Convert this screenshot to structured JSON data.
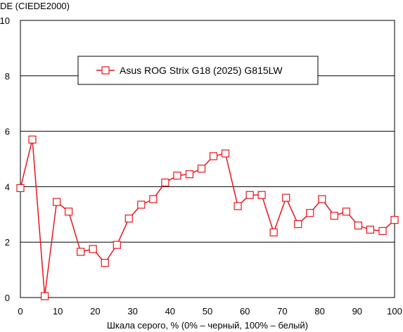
{
  "chart_data": {
    "type": "line",
    "ylabel": "DE (CIEDE2000)",
    "xlabel": "Шкала серого, % (0% – черный, 100% – белый)",
    "xlim": [
      0,
      100
    ],
    "ylim": [
      0,
      10
    ],
    "x_ticks": [
      0,
      10,
      20,
      30,
      40,
      50,
      60,
      70,
      80,
      90,
      100
    ],
    "y_ticks": [
      0,
      2,
      4,
      6,
      8,
      10
    ],
    "grid": "horizontal",
    "legend_position": "top-center",
    "series": [
      {
        "name": "Asus ROG Strix G18 (2025) G815LW",
        "color": "#e8151b",
        "marker": "square",
        "x": [
          0,
          3.2,
          6.5,
          9.7,
          12.9,
          16.1,
          19.4,
          22.6,
          25.8,
          29.0,
          32.3,
          35.5,
          38.7,
          41.9,
          45.2,
          48.4,
          51.6,
          54.8,
          58.1,
          61.3,
          64.5,
          67.7,
          71.0,
          74.2,
          77.4,
          80.6,
          83.9,
          87.1,
          90.3,
          93.5,
          96.8,
          100
        ],
        "values": [
          3.95,
          5.7,
          0.05,
          3.45,
          3.1,
          1.65,
          1.75,
          1.25,
          1.9,
          2.85,
          3.35,
          3.55,
          4.15,
          4.4,
          4.45,
          4.65,
          5.1,
          5.2,
          3.3,
          3.7,
          3.7,
          2.35,
          3.6,
          2.65,
          3.05,
          3.55,
          2.95,
          3.1,
          2.6,
          2.45,
          2.4,
          2.8
        ]
      }
    ]
  }
}
